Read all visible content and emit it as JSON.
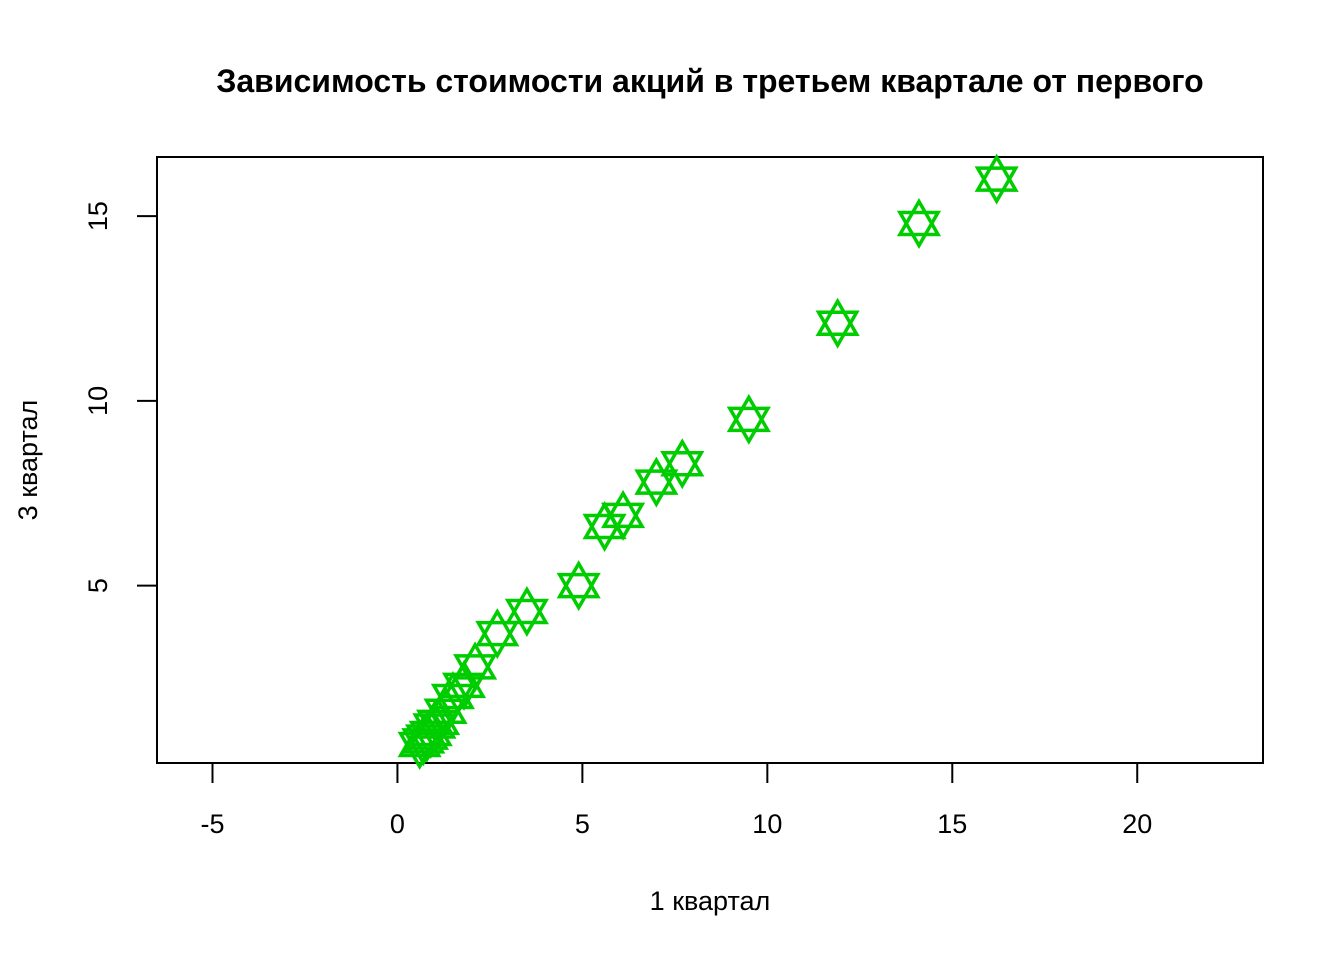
{
  "chart_data": {
    "type": "scatter",
    "title": "Зависимость стоимости акций в третьем квартале от первого",
    "xlabel": "1 квартал",
    "ylabel": "3 квартал",
    "xlim": [
      -6.5,
      23.4
    ],
    "ylim": [
      0.2,
      16.6
    ],
    "x_ticks": [
      -5,
      0,
      5,
      10,
      15,
      20
    ],
    "y_ticks": [
      5,
      10,
      15
    ],
    "x_tick_labels": [
      "-5",
      "0",
      "5",
      "10",
      "15",
      "20"
    ],
    "y_tick_labels": [
      "5",
      "10",
      "15"
    ],
    "grid": false,
    "legend": "none",
    "marker": "star-of-david",
    "marker_color": "#00CD00",
    "series": [
      {
        "x": [
          16.2,
          14.1,
          11.9,
          9.5,
          7.7,
          7.0,
          6.1,
          5.6,
          4.9,
          3.5,
          2.7,
          2.1,
          1.8,
          1.5,
          1.3,
          1.1,
          1.0,
          0.9,
          0.8,
          0.7,
          0.6
        ],
        "y": [
          16.0,
          14.8,
          12.1,
          9.5,
          8.3,
          7.8,
          6.9,
          6.6,
          5.0,
          4.3,
          3.7,
          2.8,
          2.3,
          2.0,
          1.6,
          1.3,
          1.2,
          1.0,
          0.9,
          0.8,
          0.7
        ]
      }
    ]
  }
}
